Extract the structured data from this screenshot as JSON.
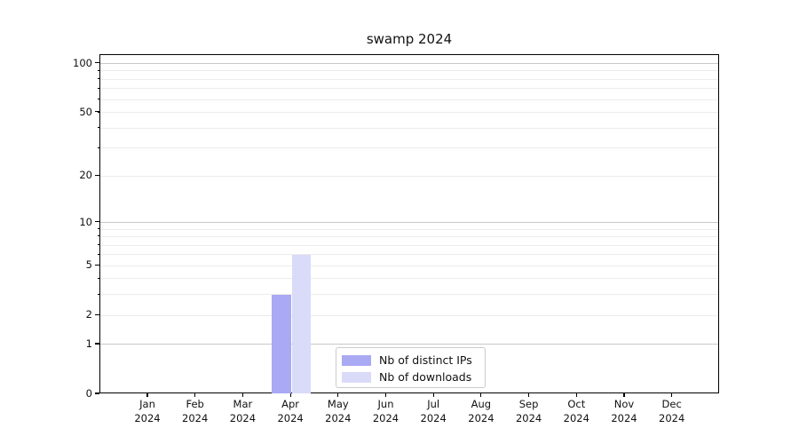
{
  "chart_data": {
    "type": "bar",
    "title": "swamp 2024",
    "categories": [
      "Jan",
      "Feb",
      "Mar",
      "Apr",
      "May",
      "Jun",
      "Jul",
      "Aug",
      "Sep",
      "Oct",
      "Nov",
      "Dec"
    ],
    "x_year_label": "2024",
    "series": [
      {
        "name": "Nb of distinct IPs",
        "color": "#a9a9f4",
        "values": [
          0,
          0,
          0,
          3,
          0,
          0,
          0,
          0,
          0,
          0,
          0,
          0
        ]
      },
      {
        "name": "Nb of downloads",
        "color": "#dadaf9",
        "values": [
          0,
          0,
          0,
          6,
          0,
          0,
          0,
          0,
          0,
          0,
          0,
          0
        ]
      }
    ],
    "yscale": "log1p",
    "ylim": [
      0,
      113
    ],
    "ytick_values": [
      "0",
      "1",
      "2",
      "5",
      "10",
      "20",
      "50",
      "100"
    ],
    "grid": {
      "major_values": [
        1,
        10,
        100
      ],
      "minor_values": [
        2,
        3,
        4,
        5,
        6,
        7,
        8,
        9,
        20,
        30,
        40,
        50,
        60,
        70,
        80,
        90
      ],
      "major_color": "#c8c8c8",
      "minor_color": "#ececec"
    },
    "legend_position": "bottom-center"
  },
  "colors": {
    "background": "#ffffff",
    "axis": "#000000",
    "text": "#111111",
    "legend_border": "#cccccc"
  }
}
